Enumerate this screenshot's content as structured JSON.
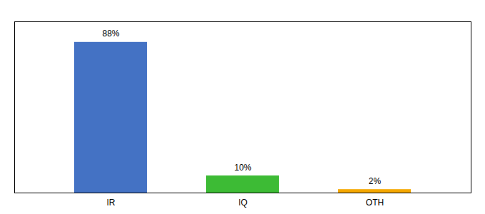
{
  "chart_data": {
    "type": "bar",
    "categories": [
      "IR",
      "IQ",
      "OTH"
    ],
    "values": [
      88,
      10,
      2
    ],
    "value_labels": [
      "88%",
      "10%",
      "2%"
    ],
    "colors": [
      "#4472c4",
      "#3dbb35",
      "#f5a800"
    ],
    "ylim": [
      0,
      100
    ],
    "data_labels": true,
    "tick_labels": "x"
  }
}
